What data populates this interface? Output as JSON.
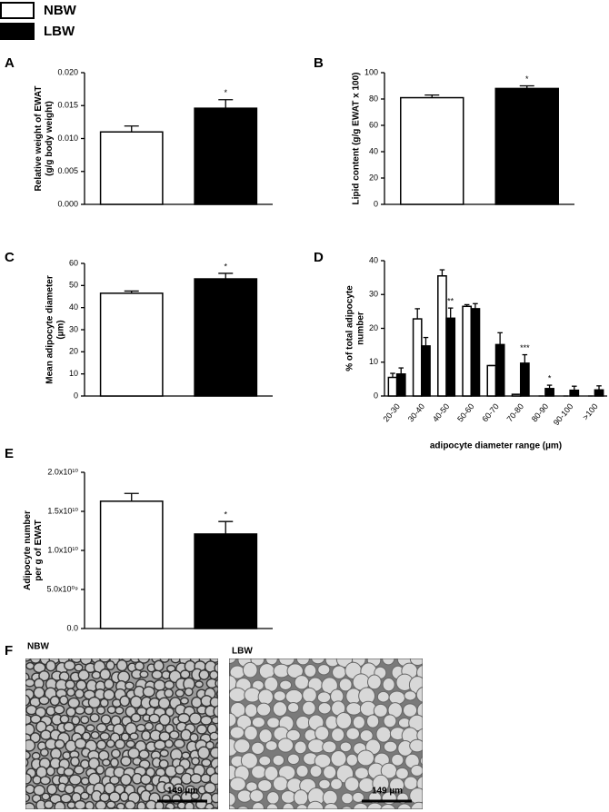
{
  "chart_data": [
    {
      "type": "bar",
      "panel": "A",
      "ylabel": [
        "Relative weight of EWAT",
        "(g/g body weight)"
      ],
      "ylim": [
        0,
        0.02
      ],
      "yticks": [
        {
          "value": 0,
          "label": "0.000"
        },
        {
          "value": 0.005,
          "label": "0.005"
        },
        {
          "value": 0.01,
          "label": "0.010"
        },
        {
          "value": 0.015,
          "label": "0.015"
        },
        {
          "value": 0.02,
          "label": "0.020"
        }
      ],
      "series": [
        {
          "name": "NBW",
          "color": "#ffffff",
          "values": [
            0.011
          ],
          "errors": [
            0.0009
          ],
          "significance": [
            null
          ]
        },
        {
          "name": "LBW",
          "color": "#000000",
          "values": [
            0.0146
          ],
          "errors": [
            0.0013
          ],
          "significance": [
            "*"
          ]
        }
      ]
    },
    {
      "type": "bar",
      "panel": "B",
      "ylabel": [
        "Lipid content (g/g EWAT x 100)"
      ],
      "ylim": [
        0,
        100
      ],
      "yticks": [
        0,
        20,
        40,
        60,
        80,
        100
      ],
      "series": [
        {
          "name": "NBW",
          "color": "#ffffff",
          "values": [
            81
          ],
          "errors": [
            2
          ],
          "significance": [
            null
          ]
        },
        {
          "name": "LBW",
          "color": "#000000",
          "values": [
            88
          ],
          "errors": [
            2
          ],
          "significance": [
            "*"
          ]
        }
      ]
    },
    {
      "type": "bar",
      "panel": "C",
      "ylabel": [
        "Mean adipocyte diameter",
        "(µm)"
      ],
      "ylim": [
        0,
        60
      ],
      "yticks": [
        0,
        10,
        20,
        30,
        40,
        50,
        60
      ],
      "series": [
        {
          "name": "NBW",
          "color": "#ffffff",
          "values": [
            46.5
          ],
          "errors": [
            1
          ],
          "significance": [
            null
          ]
        },
        {
          "name": "LBW",
          "color": "#000000",
          "values": [
            53
          ],
          "errors": [
            2.5
          ],
          "significance": [
            "*"
          ]
        }
      ]
    },
    {
      "type": "bar",
      "panel": "D",
      "ylabel": [
        "% of total adipocyte",
        "number"
      ],
      "xlabel": "adipocyte diameter range (µm)",
      "ylim": [
        0,
        40
      ],
      "yticks": [
        0,
        10,
        20,
        30,
        40
      ],
      "categories": [
        "20-30",
        "30-40",
        "40-50",
        "50-60",
        "60-70",
        "70-80",
        "80-90",
        "90-100",
        ">100"
      ],
      "series": [
        {
          "name": "NBW",
          "color": "#ffffff",
          "values": [
            5.5,
            22.8,
            35.5,
            26.5,
            9,
            0.5,
            0,
            0,
            0
          ],
          "errors": [
            1.2,
            3,
            1.8,
            0.5,
            0,
            0,
            0,
            0,
            0
          ],
          "significance": [
            null,
            null,
            null,
            null,
            null,
            null,
            null,
            null,
            null
          ]
        },
        {
          "name": "LBW",
          "color": "#000000",
          "values": [
            6.5,
            14.8,
            23,
            25.8,
            15.2,
            9.7,
            2.2,
            1.7,
            1.8
          ],
          "errors": [
            1.8,
            2.5,
            3,
            1.5,
            3.5,
            2.5,
            1,
            1.2,
            1.2
          ],
          "significance": [
            null,
            null,
            "**",
            null,
            null,
            "***",
            "*",
            null,
            null
          ]
        }
      ]
    },
    {
      "type": "bar",
      "panel": "E",
      "ylabel": [
        "Adipocyte number",
        "per g of EWAT"
      ],
      "ylim": [
        0,
        20000000000
      ],
      "yticks": [
        {
          "value": 0,
          "label": "0.0"
        },
        {
          "value": 5000000000,
          "label": "5.0x10⁰⁹"
        },
        {
          "value": 10000000000,
          "label": "1.0x10¹⁰"
        },
        {
          "value": 15000000000,
          "label": "1.5x10¹⁰"
        },
        {
          "value": 20000000000,
          "label": "2.0x10¹⁰"
        }
      ],
      "series": [
        {
          "name": "NBW",
          "color": "#ffffff",
          "values": [
            16300000000
          ],
          "errors": [
            1000000000
          ],
          "significance": [
            null
          ]
        },
        {
          "name": "LBW",
          "color": "#000000",
          "values": [
            12100000000
          ],
          "errors": [
            1600000000
          ],
          "significance": [
            "*"
          ]
        }
      ]
    }
  ],
  "micrographs": {
    "panel": "F",
    "images": [
      {
        "label": "NBW",
        "scale_bar": "149 µm"
      },
      {
        "label": "LBW",
        "scale_bar": "149 µm"
      }
    ]
  }
}
